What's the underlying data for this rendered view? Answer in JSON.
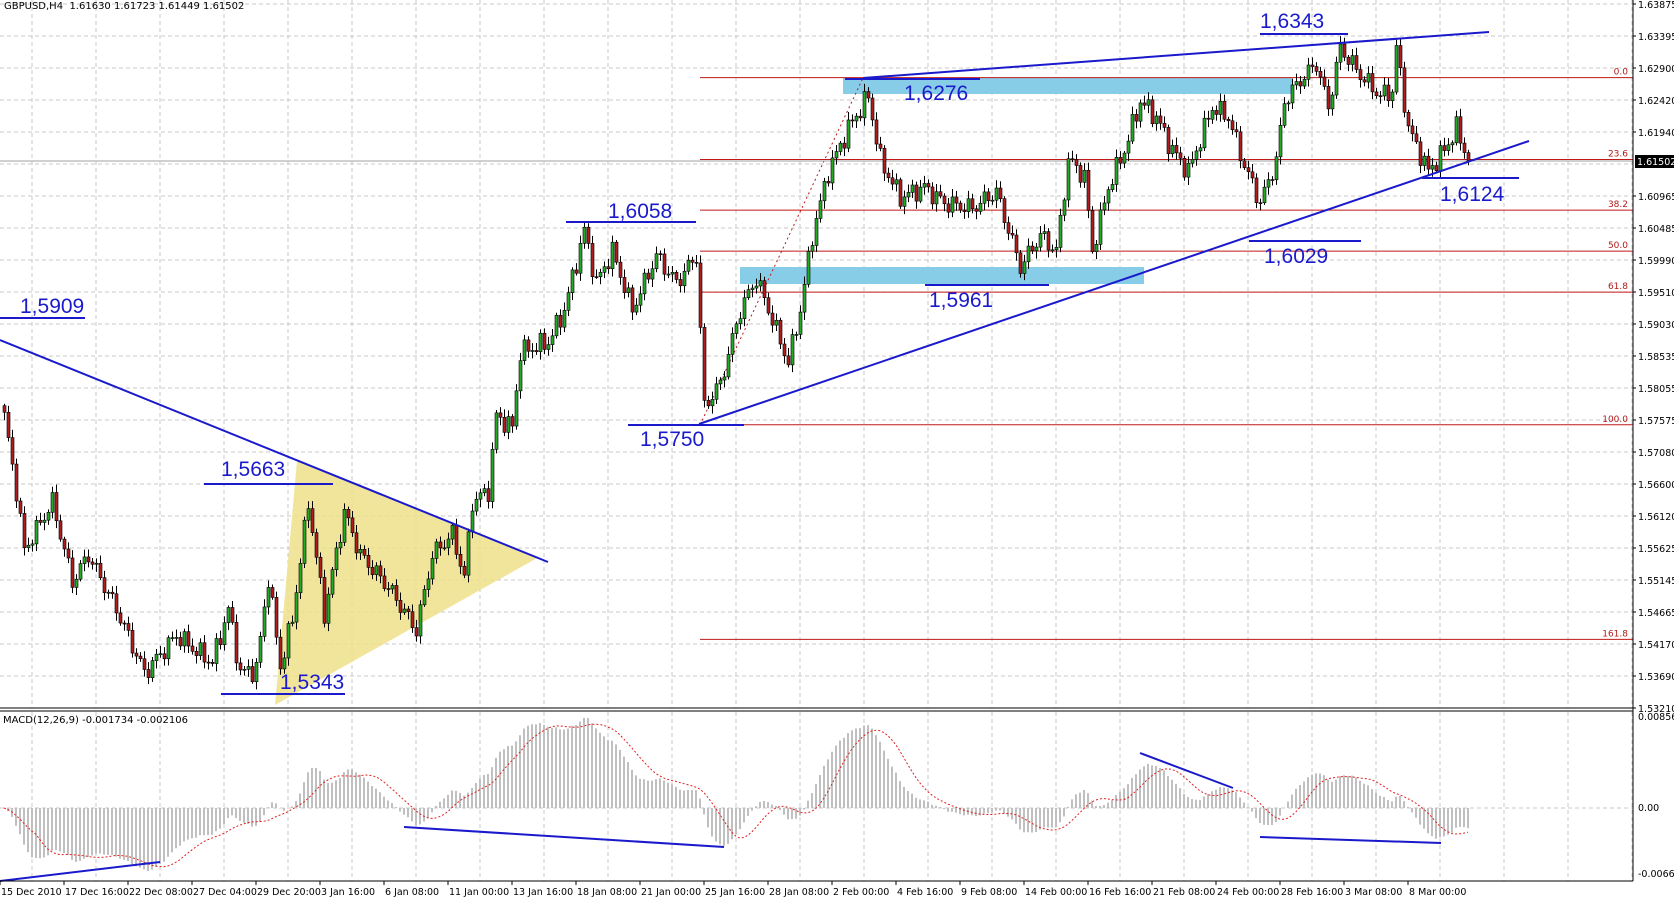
{
  "header": {
    "symbol": "GBPUSD,H4",
    "ohlc": "1.61630 1.61723 1.61449 1.61502"
  },
  "macd": {
    "label": "MACD(12,26,9) -0.001734 -0.002106",
    "axis": [
      "0.00856",
      "0.00",
      "-0.00664"
    ]
  },
  "price_axis": [
    "1.63875",
    "1.63395",
    "1.62900",
    "1.62420",
    "1.61940",
    "1.61502",
    "1.60965",
    "1.60485",
    "1.59990",
    "1.59510",
    "1.59030",
    "1.58535",
    "1.58055",
    "1.57575",
    "1.57080",
    "1.56600",
    "1.56120",
    "1.55625",
    "1.55145",
    "1.54665",
    "1.54170",
    "1.53690",
    "1.53210"
  ],
  "current_price": "1.61502",
  "date_axis": [
    "15 Dec 2010",
    "17 Dec 16:00",
    "22 Dec 08:00",
    "27 Dec 04:00",
    "29 Dec 20:00",
    "3 Jan 16:00",
    "6 Jan 08:00",
    "11 Jan 00:00",
    "13 Jan 16:00",
    "18 Jan 08:00",
    "21 Jan 00:00",
    "25 Jan 16:00",
    "28 Jan 08:00",
    "2 Feb 00:00",
    "4 Feb 16:00",
    "9 Feb 08:00",
    "14 Feb 00:00",
    "16 Feb 16:00",
    "21 Feb 08:00",
    "24 Feb 00:00",
    "28 Feb 16:00",
    "3 Mar 08:00",
    "8 Mar 00:00"
  ],
  "fibonacci": [
    {
      "level": "0.0",
      "price": 1.6276
    },
    {
      "level": "23.6",
      "price": 1.61519
    },
    {
      "level": "38.2",
      "price": 1.60751
    },
    {
      "level": "50.0",
      "price": 1.6013
    },
    {
      "level": "61.8",
      "price": 1.59509
    },
    {
      "level": "100.0",
      "price": 1.575
    },
    {
      "level": "161.8",
      "price": 1.54249
    }
  ],
  "annotations": {
    "a1": "1,5909",
    "a2": "1,5663",
    "a3": "1,5343",
    "a4": "1,6058",
    "a5": "1,5750",
    "a6": "1,6276",
    "a7": "1,5961",
    "a8": "1,6343",
    "a9": "1,6029",
    "a10": "1,6124"
  },
  "colors": {
    "bull": "#22aa22",
    "bear": "#b01c1c",
    "trendline": "#1a1acc",
    "fib": "#c01818",
    "zone": "#87cde8",
    "triangle": "#eee08a",
    "histogram": "#c0c0c0",
    "signal": "#e02020"
  },
  "chart_data": {
    "type": "candlestick",
    "symbol": "GBPUSD",
    "timeframe": "H4",
    "ylim": [
      1.5321,
      1.63875
    ],
    "grid": true,
    "path_bar_price": [
      [
        0,
        1.5763
      ],
      [
        3,
        1.565
      ],
      [
        5,
        1.556
      ],
      [
        12,
        1.5633
      ],
      [
        17,
        1.5512
      ],
      [
        21,
        1.5553
      ],
      [
        28,
        1.5471
      ],
      [
        35,
        1.5374
      ],
      [
        43,
        1.5431
      ],
      [
        48,
        1.5407
      ],
      [
        52,
        1.539
      ],
      [
        56,
        1.5471
      ],
      [
        59,
        1.5374
      ],
      [
        63,
        1.538
      ],
      [
        66,
        1.5519
      ],
      [
        69,
        1.5383
      ],
      [
        72,
        1.5456
      ],
      [
        76,
        1.5633
      ],
      [
        80,
        1.5463
      ],
      [
        85,
        1.5618
      ],
      [
        89,
        1.5553
      ],
      [
        96,
        1.5504
      ],
      [
        103,
        1.5439
      ],
      [
        107,
        1.5553
      ],
      [
        112,
        1.5584
      ],
      [
        115,
        1.5519
      ],
      [
        117,
        1.5633
      ],
      [
        121,
        1.565
      ],
      [
        123,
        1.5763
      ],
      [
        127,
        1.5746
      ],
      [
        129,
        1.586
      ],
      [
        136,
        1.5875
      ],
      [
        140,
        1.5924
      ],
      [
        145,
        1.6045
      ],
      [
        148,
        1.5965
      ],
      [
        152,
        1.6013
      ],
      [
        157,
        1.5924
      ],
      [
        163,
        1.6006
      ],
      [
        168,
        1.5965
      ],
      [
        173,
        1.6006
      ],
      [
        175,
        1.5778
      ],
      [
        179,
        1.5812
      ],
      [
        184,
        1.5924
      ],
      [
        188,
        1.5972
      ],
      [
        192,
        1.5909
      ],
      [
        196,
        1.5844
      ],
      [
        199,
        1.5924
      ],
      [
        202,
        1.6037
      ],
      [
        206,
        1.6134
      ],
      [
        211,
        1.6199
      ],
      [
        216,
        1.6248
      ],
      [
        219,
        1.6151
      ],
      [
        224,
        1.6094
      ],
      [
        230,
        1.611
      ],
      [
        235,
        1.6086
      ],
      [
        242,
        1.6078
      ],
      [
        248,
        1.6103
      ],
      [
        254,
        1.5989
      ],
      [
        259,
        1.6037
      ],
      [
        263,
        1.6013
      ],
      [
        266,
        1.6151
      ],
      [
        270,
        1.6127
      ],
      [
        272,
        1.6013
      ],
      [
        276,
        1.611
      ],
      [
        280,
        1.6166
      ],
      [
        284,
        1.624
      ],
      [
        288,
        1.6216
      ],
      [
        292,
        1.6166
      ],
      [
        296,
        1.6134
      ],
      [
        302,
        1.6231
      ],
      [
        306,
        1.6216
      ],
      [
        310,
        1.6143
      ],
      [
        314,
        1.6086
      ],
      [
        318,
        1.6151
      ],
      [
        320,
        1.624
      ],
      [
        324,
        1.6272
      ],
      [
        328,
        1.6297
      ],
      [
        331,
        1.6231
      ],
      [
        334,
        1.6321
      ],
      [
        339,
        1.628
      ],
      [
        344,
        1.6248
      ],
      [
        347,
        1.6256
      ],
      [
        348,
        1.6321
      ],
      [
        351,
        1.6199
      ],
      [
        356,
        1.6134
      ],
      [
        360,
        1.6166
      ],
      [
        363,
        1.6199
      ],
      [
        366,
        1.615
      ]
    ]
  }
}
